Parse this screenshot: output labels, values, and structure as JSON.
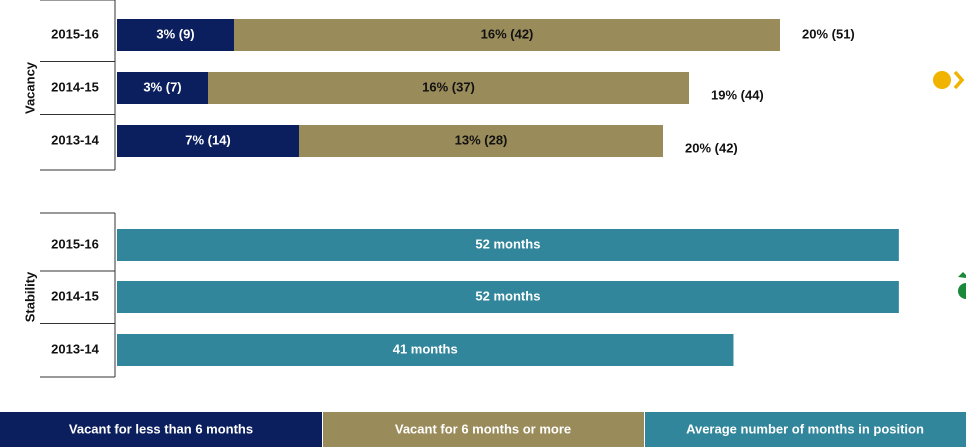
{
  "chart_data": [
    {
      "type": "stacked-hbar",
      "y_label": "Vacancy",
      "categories": [
        "2015-16",
        "2014-15",
        "2013-14"
      ],
      "series": [
        {
          "name": "Vacant for less than 6 months",
          "color": "#0b1f5e",
          "text_color": "#ffffff",
          "values": [
            9,
            7,
            14
          ],
          "value_labels": [
            "3% (9)",
            "3% (7)",
            "7% (14)"
          ]
        },
        {
          "name": "Vacant for 6 months or more",
          "color": "#9a8b5a",
          "text_color": "#111111",
          "values": [
            42,
            37,
            28
          ],
          "value_labels": [
            "16% (42)",
            "16% (37)",
            "13% (28)"
          ]
        }
      ],
      "totals": {
        "values": [
          51,
          44,
          42
        ],
        "value_labels": [
          "20% (51)",
          "19% (44)",
          "20% (42)"
        ]
      },
      "xlim": [
        0,
        65
      ]
    },
    {
      "type": "hbar",
      "y_label": "Stability",
      "categories": [
        "2015-16",
        "2014-15",
        "2013-14"
      ],
      "series": [
        {
          "name": "Average number of months in position",
          "color": "#31869b",
          "text_color": "#ffffff",
          "values": [
            52,
            52,
            41
          ],
          "value_labels": [
            "52 months",
            "52 months",
            "41 months"
          ]
        }
      ],
      "xlim": [
        0,
        56
      ]
    }
  ]
}
